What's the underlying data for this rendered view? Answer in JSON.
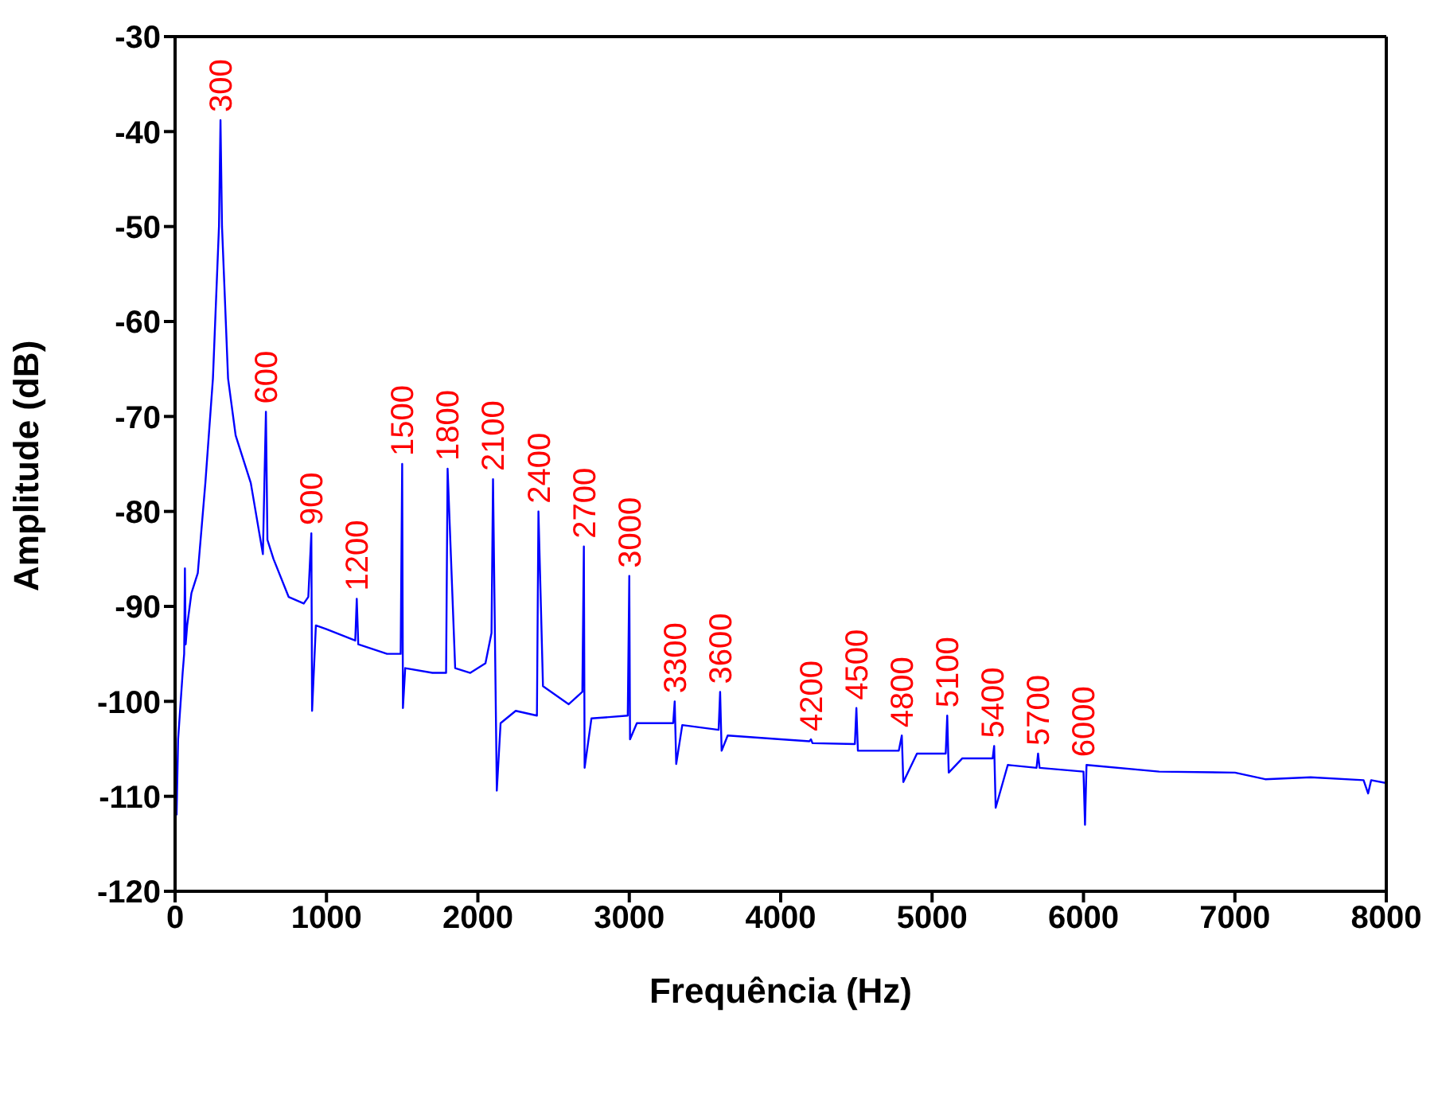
{
  "chart_data": {
    "type": "line",
    "xlabel": "Frequência (Hz)",
    "ylabel": "Amplitude (dB)",
    "xlim": [
      0,
      8000
    ],
    "xticks": [
      0,
      1000,
      2000,
      3000,
      4000,
      5000,
      6000,
      7000,
      8000
    ],
    "ylim": [
      -120,
      -30
    ],
    "yticks": [
      -120,
      -110,
      -100,
      -90,
      -80,
      -70,
      -60,
      -50,
      -40,
      -30
    ],
    "grid": false,
    "marker": "none",
    "line_style": "solid",
    "series": [
      {
        "color": "#0000ff",
        "x": [
          10,
          20,
          50,
          60,
          65,
          70,
          80,
          108,
          150,
          200,
          250,
          290,
          300,
          310,
          350,
          400,
          500,
          580,
          600,
          610,
          650,
          750,
          850,
          880,
          900,
          905,
          930,
          1000,
          1190,
          1200,
          1210,
          1400,
          1490,
          1500,
          1505,
          1520,
          1700,
          1790,
          1800,
          1850,
          1950,
          2050,
          2090,
          2100,
          2125,
          2150,
          2250,
          2390,
          2400,
          2430,
          2600,
          2690,
          2700,
          2705,
          2750,
          2990,
          3000,
          3005,
          3050,
          3290,
          3300,
          3310,
          3350,
          3590,
          3600,
          3610,
          3650,
          4000,
          4190,
          4200,
          4210,
          4490,
          4500,
          4510,
          4780,
          4800,
          4810,
          4900,
          5090,
          5100,
          5110,
          5200,
          5400,
          5410,
          5420,
          5500,
          5690,
          5700,
          5710,
          6000,
          6010,
          6020,
          6500,
          7000,
          7200,
          7500,
          7850,
          7880,
          7900,
          8000
        ],
        "values": [
          -112,
          -104,
          -97,
          -95,
          -86,
          -94,
          -92,
          -88.6,
          -86.5,
          -77,
          -66,
          -50,
          -38.8,
          -50,
          -66,
          -72,
          -77,
          -84.5,
          -69.5,
          -83,
          -85,
          -89,
          -89.7,
          -89,
          -82.3,
          -101,
          -92,
          -92.4,
          -93.6,
          -89.2,
          -94,
          -95,
          -95,
          -75,
          -100.7,
          -96.5,
          -97,
          -97,
          -75.5,
          -96.5,
          -97,
          -96,
          -92.8,
          -76.6,
          -109.4,
          -102.3,
          -101,
          -101.5,
          -80,
          -98.4,
          -100.3,
          -99,
          -83.7,
          -107,
          -101.8,
          -101.5,
          -86.8,
          -104,
          -102.3,
          -102.3,
          -100,
          -106.6,
          -102.5,
          -103,
          -99,
          -105.2,
          -103.6,
          -104,
          -104.2,
          -104,
          -104.4,
          -104.5,
          -100.7,
          -105.2,
          -105.2,
          -103.6,
          -108.5,
          -105.5,
          -105.5,
          -101.5,
          -107.5,
          -106,
          -106,
          -104.7,
          -111.2,
          -106.7,
          -107,
          -105.5,
          -107,
          -107.4,
          -113,
          -106.7,
          -107.4,
          -107.5,
          -108.2,
          -108,
          -108.3,
          -109.7,
          -108.3,
          -108.6
        ]
      }
    ],
    "annotations": [
      {
        "text": "300",
        "x": 300,
        "y": -38.8
      },
      {
        "text": "600",
        "x": 600,
        "y": -69.5
      },
      {
        "text": "900",
        "x": 900,
        "y": -82.3
      },
      {
        "text": "1200",
        "x": 1200,
        "y": -89.2
      },
      {
        "text": "1500",
        "x": 1500,
        "y": -75
      },
      {
        "text": "1800",
        "x": 1800,
        "y": -75.5
      },
      {
        "text": "2100",
        "x": 2100,
        "y": -76.6
      },
      {
        "text": "2400",
        "x": 2400,
        "y": -80
      },
      {
        "text": "2700",
        "x": 2700,
        "y": -83.7
      },
      {
        "text": "3000",
        "x": 3000,
        "y": -86.8
      },
      {
        "text": "3300",
        "x": 3300,
        "y": -100
      },
      {
        "text": "3600",
        "x": 3600,
        "y": -99
      },
      {
        "text": "4200",
        "x": 4200,
        "y": -104
      },
      {
        "text": "4500",
        "x": 4500,
        "y": -100.7
      },
      {
        "text": "4800",
        "x": 4800,
        "y": -103.6
      },
      {
        "text": "5100",
        "x": 5100,
        "y": -101.5
      },
      {
        "text": "5400",
        "x": 5400,
        "y": -104.7
      },
      {
        "text": "5700",
        "x": 5700,
        "y": -105.5
      },
      {
        "text": "6000",
        "x": 6000,
        "y": -106.7
      }
    ]
  }
}
